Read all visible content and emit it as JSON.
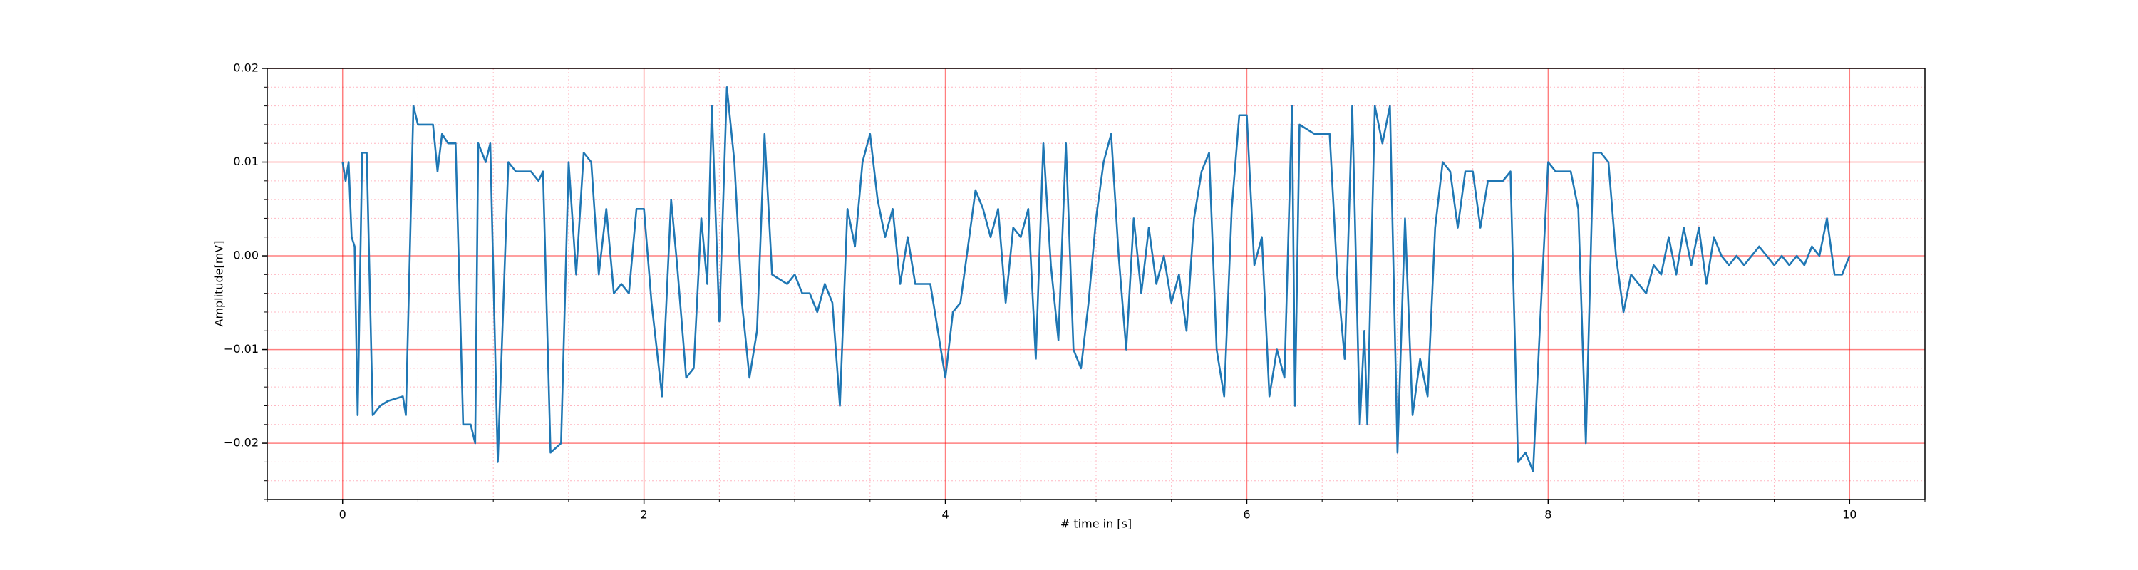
{
  "chart_data": {
    "type": "line",
    "xlabel": "# time in [s]",
    "ylabel": "Amplitude[mV]",
    "xlim": [
      -0.5,
      10.5
    ],
    "ylim": [
      -0.026,
      0.02
    ],
    "xticks": [
      0,
      2,
      4,
      6,
      8,
      10
    ],
    "yticks": [
      {
        "value": -0.02,
        "label": "−0.02"
      },
      {
        "value": -0.01,
        "label": "−0.01"
      },
      {
        "value": 0,
        "label": "0.00"
      },
      0.01,
      0.02
    ],
    "xticks_minor": [
      -0.5,
      0.5,
      1,
      1.5,
      2.5,
      3,
      3.5,
      4.5,
      5,
      5.5,
      6.5,
      7,
      7.5,
      8.5,
      9,
      9.5,
      10.5
    ],
    "yticks_minor": [
      -0.026,
      -0.024,
      -0.022,
      -0.018,
      -0.016,
      -0.014,
      -0.012,
      -0.008,
      -0.006,
      -0.004,
      -0.002,
      0.002,
      0.004,
      0.006,
      0.008,
      0.012,
      0.014,
      0.016,
      0.018
    ],
    "grid": true,
    "grid_major_color": "#ff0000",
    "grid_minor_color": "#ffb6c1",
    "series": [
      {
        "color": "#1f77b4",
        "x": [
          0.0,
          0.02,
          0.04,
          0.06,
          0.08,
          0.1,
          0.13,
          0.16,
          0.2,
          0.25,
          0.3,
          0.4,
          0.42,
          0.47,
          0.5,
          0.55,
          0.6,
          0.63,
          0.66,
          0.7,
          0.75,
          0.8,
          0.85,
          0.88,
          0.9,
          0.95,
          0.98,
          1.03,
          1.1,
          1.15,
          1.25,
          1.3,
          1.33,
          1.38,
          1.45,
          1.5,
          1.55,
          1.6,
          1.65,
          1.7,
          1.75,
          1.8,
          1.85,
          1.9,
          1.95,
          2.0,
          2.05,
          2.12,
          2.18,
          2.22,
          2.28,
          2.33,
          2.38,
          2.42,
          2.45,
          2.5,
          2.55,
          2.6,
          2.65,
          2.7,
          2.75,
          2.8,
          2.85,
          2.95,
          3.0,
          3.05,
          3.1,
          3.15,
          3.2,
          3.25,
          3.3,
          3.35,
          3.4,
          3.45,
          3.5,
          3.55,
          3.6,
          3.65,
          3.7,
          3.75,
          3.8,
          3.9,
          4.0,
          4.05,
          4.1,
          4.15,
          4.2,
          4.25,
          4.3,
          4.35,
          4.4,
          4.45,
          4.5,
          4.55,
          4.6,
          4.65,
          4.7,
          4.75,
          4.8,
          4.85,
          4.9,
          4.95,
          5.0,
          5.05,
          5.1,
          5.15,
          5.2,
          5.25,
          5.3,
          5.35,
          5.4,
          5.45,
          5.5,
          5.55,
          5.6,
          5.65,
          5.7,
          5.75,
          5.8,
          5.85,
          5.9,
          5.95,
          6.0,
          6.05,
          6.1,
          6.15,
          6.2,
          6.25,
          6.3,
          6.32,
          6.35,
          6.45,
          6.55,
          6.6,
          6.65,
          6.7,
          6.75,
          6.78,
          6.8,
          6.85,
          6.9,
          6.95,
          7.0,
          7.05,
          7.1,
          7.15,
          7.2,
          7.25,
          7.3,
          7.35,
          7.4,
          7.45,
          7.5,
          7.55,
          7.6,
          7.7,
          7.75,
          7.8,
          7.85,
          7.9,
          7.95,
          8.0,
          8.05,
          8.1,
          8.15,
          8.2,
          8.25,
          8.3,
          8.35,
          8.4,
          8.45,
          8.5,
          8.55,
          8.6,
          8.65,
          8.7,
          8.75,
          8.8,
          8.85,
          8.9,
          8.95,
          9.0,
          9.05,
          9.1,
          9.15,
          9.2,
          9.25,
          9.3,
          9.4,
          9.5,
          9.55,
          9.6,
          9.65,
          9.7,
          9.75,
          9.8,
          9.85,
          9.9,
          9.95,
          10.0
        ],
        "values": [
          0.01,
          0.008,
          0.01,
          0.002,
          0.001,
          -0.017,
          0.011,
          0.011,
          -0.017,
          -0.016,
          -0.0155,
          -0.015,
          -0.017,
          0.016,
          0.014,
          0.014,
          0.014,
          0.009,
          0.013,
          0.012,
          0.012,
          -0.018,
          -0.018,
          -0.02,
          0.012,
          0.01,
          0.012,
          -0.022,
          0.01,
          0.009,
          0.009,
          0.008,
          0.009,
          -0.021,
          -0.02,
          0.01,
          -0.002,
          0.011,
          0.01,
          -0.002,
          0.005,
          -0.004,
          -0.003,
          -0.004,
          0.005,
          0.005,
          -0.005,
          -0.015,
          0.006,
          -0.001,
          -0.013,
          -0.012,
          0.004,
          -0.003,
          0.016,
          -0.007,
          0.018,
          0.01,
          -0.005,
          -0.013,
          -0.008,
          0.013,
          -0.002,
          -0.003,
          -0.002,
          -0.004,
          -0.004,
          -0.006,
          -0.003,
          -0.005,
          -0.016,
          0.005,
          0.001,
          0.01,
          0.013,
          0.006,
          0.002,
          0.005,
          -0.003,
          0.002,
          -0.003,
          -0.003,
          -0.013,
          -0.006,
          -0.005,
          0.001,
          0.007,
          0.005,
          0.002,
          0.005,
          -0.005,
          0.003,
          0.002,
          0.005,
          -0.011,
          0.012,
          -0.001,
          -0.009,
          0.012,
          -0.01,
          -0.012,
          -0.005,
          0.004,
          0.01,
          0.013,
          0.0,
          -0.01,
          0.004,
          -0.004,
          0.003,
          -0.003,
          0.0,
          -0.005,
          -0.002,
          -0.008,
          0.004,
          0.009,
          0.011,
          -0.01,
          -0.015,
          0.005,
          0.015,
          0.015,
          -0.001,
          0.002,
          -0.015,
          -0.01,
          -0.013,
          0.016,
          -0.016,
          0.014,
          0.013,
          0.013,
          -0.002,
          -0.011,
          0.016,
          -0.018,
          -0.008,
          -0.018,
          0.016,
          0.012,
          0.016,
          -0.021,
          0.004,
          -0.017,
          -0.011,
          -0.015,
          0.003,
          0.01,
          0.009,
          0.003,
          0.009,
          0.009,
          0.003,
          0.008,
          0.008,
          0.009,
          -0.022,
          -0.021,
          -0.023,
          -0.006,
          0.01,
          0.009,
          0.009,
          0.009,
          0.005,
          -0.02,
          0.011,
          0.011,
          0.01,
          0.0,
          -0.006,
          -0.002,
          -0.003,
          -0.004,
          -0.001,
          -0.002,
          0.002,
          -0.002,
          0.003,
          -0.001,
          0.003,
          -0.003,
          0.002,
          0.0,
          -0.001,
          0.0,
          -0.001,
          0.001,
          -0.001,
          0.0,
          -0.001,
          0.0,
          -0.001,
          0.001,
          0.0,
          0.004,
          -0.002,
          -0.002,
          0.0
        ]
      }
    ]
  }
}
